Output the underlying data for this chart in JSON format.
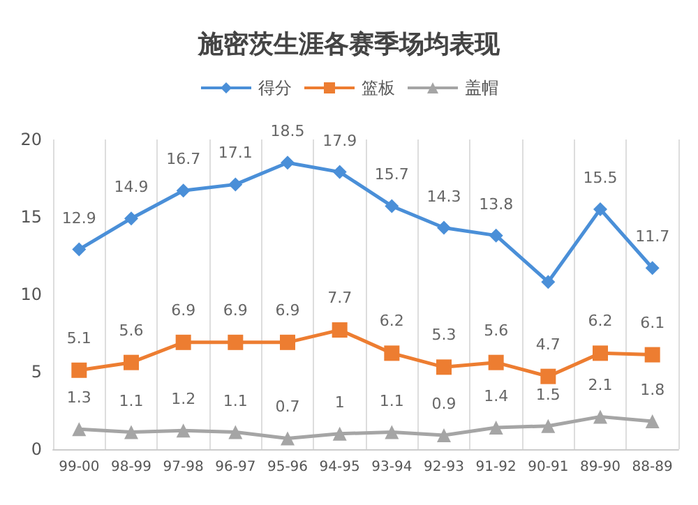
{
  "chart_data": {
    "type": "line",
    "title": "施密茨生涯各赛季场均表现",
    "categories": [
      "99-00",
      "98-99",
      "97-98",
      "96-97",
      "95-96",
      "94-95",
      "93-94",
      "92-93",
      "91-92",
      "90-91",
      "89-90",
      "88-89"
    ],
    "series": [
      {
        "name": "得分",
        "color": "#4a8fd8",
        "marker": "diamond",
        "values": [
          12.9,
          14.9,
          16.7,
          17.1,
          18.5,
          17.9,
          15.7,
          14.3,
          13.8,
          10.8,
          15.5,
          11.7
        ],
        "value_labels": [
          "12.9",
          "14.9",
          "16.7",
          "17.1",
          "18.5",
          "17.9",
          "15.7",
          "14.3",
          "13.8",
          null,
          "15.5",
          "11.7"
        ]
      },
      {
        "name": "篮板",
        "color": "#ed7d31",
        "marker": "square",
        "values": [
          5.1,
          5.6,
          6.9,
          6.9,
          6.9,
          7.7,
          6.2,
          5.3,
          5.6,
          4.7,
          6.2,
          6.1
        ],
        "value_labels": [
          "5.1",
          "5.6",
          "6.9",
          "6.9",
          "6.9",
          "7.7",
          "6.2",
          "5.3",
          "5.6",
          "4.7",
          "6.2",
          "6.1"
        ]
      },
      {
        "name": "盖帽",
        "color": "#a5a5a5",
        "marker": "triangle",
        "values": [
          1.3,
          1.1,
          1.2,
          1.1,
          0.7,
          1,
          1.1,
          0.9,
          1.4,
          1.5,
          2.1,
          1.8
        ],
        "value_labels": [
          "1.3",
          "1.1",
          "1.2",
          "1.1",
          "0.7",
          "1",
          "1.1",
          "0.9",
          "1.4",
          "1.5",
          "2.1",
          "1.8"
        ]
      }
    ],
    "ylim": [
      0,
      20
    ],
    "yticks": [
      0,
      5,
      10,
      15,
      20
    ],
    "grid": "x",
    "legend": "top"
  }
}
